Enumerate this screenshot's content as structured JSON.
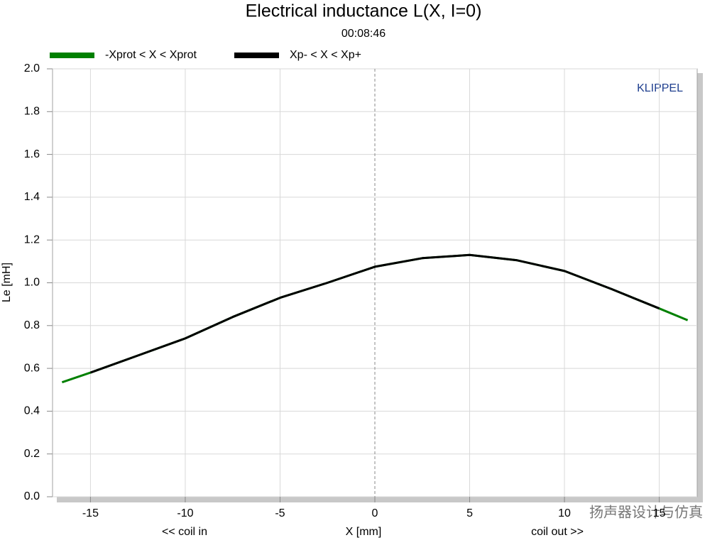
{
  "chart_data": {
    "type": "line",
    "title": "Electrical inductance L(X, I=0)",
    "subtitle": "00:08:46",
    "xlabel": "X [mm]",
    "ylabel": "Le [mH]",
    "annotations": [
      "<< coil in",
      "coil out >>",
      "KLIPPEL"
    ],
    "watermark": "扬声器设计与仿真",
    "xlim": [
      -17,
      17
    ],
    "ylim": [
      0,
      2
    ],
    "xticks": [
      -15,
      -10,
      -5,
      0,
      5,
      10,
      15
    ],
    "yticks": [
      {
        "value": 0,
        "label": "0.0"
      },
      0.2,
      0.4,
      0.6,
      0.8,
      {
        "value": 1,
        "label": "1.0"
      },
      1.2,
      1.4,
      1.6,
      1.8,
      {
        "value": 2,
        "label": "2.0"
      }
    ],
    "grid": true,
    "zero_line": true,
    "legend": "top-left",
    "series": [
      {
        "name": "-Xprot < X < Xprot",
        "color": "#008000",
        "x": [
          -16.5,
          -15,
          -12.5,
          -10,
          -7.5,
          -5,
          -2.5,
          0,
          2.5,
          5,
          7.5,
          10,
          12.5,
          15,
          16.5
        ],
        "values": [
          0.535,
          0.58,
          0.66,
          0.74,
          0.84,
          0.93,
          1.0,
          1.075,
          1.115,
          1.13,
          1.105,
          1.055,
          0.97,
          0.88,
          0.825
        ]
      },
      {
        "name": "Xp- < X < Xp+",
        "color": "#000000",
        "x": [
          -15,
          -12.5,
          -10,
          -7.5,
          -5,
          -2.5,
          0,
          2.5,
          5,
          7.5,
          10,
          12.5,
          15
        ],
        "values": [
          0.58,
          0.66,
          0.74,
          0.84,
          0.93,
          1.0,
          1.075,
          1.115,
          1.13,
          1.105,
          1.055,
          0.97,
          0.88
        ]
      }
    ]
  }
}
